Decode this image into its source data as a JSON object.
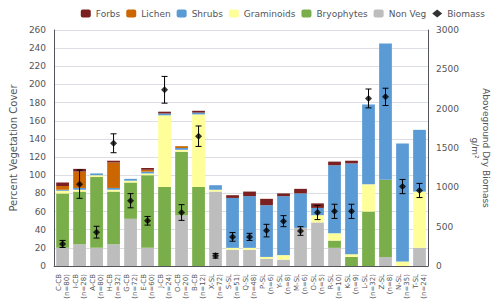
{
  "chart_data": {
    "type": "bar",
    "stacked": true,
    "grid": true,
    "legend": "upper right",
    "categories": [
      "C-CB\n(n=80)",
      "I-CB\n(n=28)",
      "A-CB\n(n=80)",
      "H-CB\n(n=32)",
      "G-CB\n(n=72)",
      "E-CB\n(n=60)",
      "J-CB\n(n=24)",
      "O-CB\n(n=20)",
      "B-CB\n(n=12)",
      "X-SL\n(n=72)",
      "S-SL\n(n=51)",
      "Q-SL\n(n=48)",
      "P-SL\n(n=6)",
      "Y-SL\n(n=8)",
      "M-SL\n(n=6)",
      "O-SL\n(n=5)",
      "R-SL\n(n=10)",
      "K-SL\n(n=9)",
      "L-SL\n(n=32)",
      "Z-SL\n(n=8)",
      "N-SL\n(n=35)",
      "T-SL\n(n=24)"
    ],
    "ylabel": "Percent Vegetation Cover",
    "y2label": "Aboveground Dry Biomass\ng/m²",
    "ylim": [
      0,
      260
    ],
    "yticks": [
      0,
      20,
      40,
      60,
      80,
      100,
      120,
      140,
      160,
      180,
      200,
      220,
      240,
      260
    ],
    "y2lim": [
      0,
      3000
    ],
    "y2ticks": [
      0,
      500,
      1000,
      1500,
      2000,
      2500,
      3000
    ],
    "series": [
      {
        "name": "Non Veg",
        "color": "#BDBDBD",
        "values": [
          20,
          24,
          20,
          24,
          52,
          20,
          0,
          56,
          0,
          82,
          18,
          18,
          8,
          7,
          42,
          48,
          20,
          0,
          0,
          10,
          0,
          20
        ]
      },
      {
        "name": "Bryophytes",
        "color": "#7AAE4A",
        "values": [
          60,
          58,
          78,
          58,
          40,
          80,
          87,
          70,
          87,
          0,
          0,
          0,
          0,
          0,
          0,
          0,
          8,
          10,
          60,
          85,
          0,
          0
        ]
      },
      {
        "name": "Graminoids",
        "color": "#FFFF99",
        "values": [
          3,
          2,
          2,
          2,
          2,
          2,
          79,
          2,
          80,
          2,
          2,
          2,
          2,
          5,
          0,
          8,
          8,
          3,
          30,
          0,
          5,
          62
        ]
      },
      {
        "name": "Shrubs",
        "color": "#5B9BD5",
        "values": [
          1,
          2,
          2,
          2,
          2,
          2,
          2,
          2,
          2,
          5,
          55,
          57,
          57,
          65,
          38,
          8,
          75,
          100,
          88,
          150,
          130,
          68
        ]
      },
      {
        "name": "Lichen",
        "color": "#CC6600",
        "values": [
          4,
          18,
          0,
          28,
          0,
          2,
          0,
          2,
          0,
          0,
          0,
          0,
          0,
          0,
          0,
          0,
          0,
          0,
          0,
          0,
          0,
          0
        ]
      },
      {
        "name": "Forbs",
        "color": "#7B2020",
        "values": [
          4,
          3,
          0,
          2,
          0,
          2,
          2,
          0,
          2,
          0,
          3,
          5,
          7,
          3,
          5,
          5,
          4,
          3,
          0,
          0,
          0,
          0
        ]
      },
      {
        "name": "Biomass",
        "type": "scatter",
        "axis": "y2",
        "marker": "diamond",
        "color": "#000000",
        "values": [
          280,
          1040,
          430,
          1560,
          830,
          575,
          2240,
          680,
          1650,
          130,
          370,
          370,
          450,
          570,
          445,
          680,
          695,
          695,
          2130,
          2150,
          1010,
          960
        ],
        "errors": [
          45,
          180,
          75,
          120,
          90,
          55,
          170,
          100,
          130,
          30,
          55,
          45,
          80,
          70,
          55,
          90,
          90,
          90,
          120,
          110,
          90,
          90
        ]
      }
    ]
  }
}
